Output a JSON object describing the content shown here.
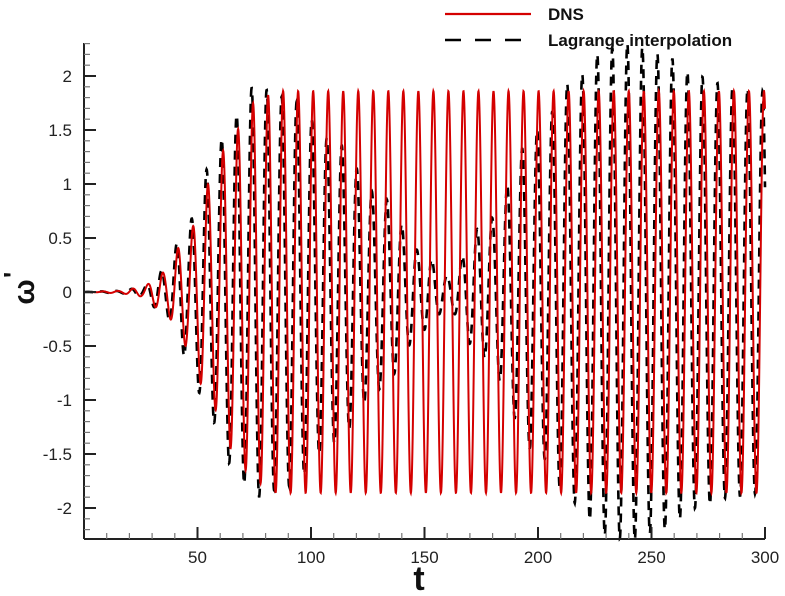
{
  "chart_data": {
    "type": "line",
    "title": "",
    "xlabel": "t",
    "ylabel": "ω'",
    "xlim": [
      0,
      300
    ],
    "ylim": [
      -2.29,
      2.3
    ],
    "xticks": [
      50,
      100,
      150,
      200,
      250,
      300
    ],
    "xtick_labels": [
      "50",
      "100",
      "150",
      "200",
      "250",
      "300"
    ],
    "xminor_step": 10,
    "yticks": [
      -2,
      -1.5,
      -1,
      -0.5,
      0,
      0.5,
      1,
      1.5,
      2
    ],
    "ytick_labels": [
      "-2",
      "-1.5",
      "-1",
      "-0.5",
      "0",
      "0.5",
      "1",
      "1.5",
      "2"
    ],
    "yminor_step": 0.1,
    "grid": false,
    "legend_position": "top-right, outside plot area",
    "period": 6.62,
    "series": [
      {
        "name": "DNS",
        "color": "#d40000",
        "style": "solid",
        "envelope": {
          "t": [
            0,
            15,
            25,
            35,
            45,
            55,
            65,
            75,
            85,
            300
          ],
          "amplitude": [
            0,
            0.01,
            0.04,
            0.18,
            0.5,
            1.0,
            1.45,
            1.75,
            1.86,
            1.86
          ]
        },
        "phase_offset": 0
      },
      {
        "name": "Lagrange interpolation",
        "color": "#000000",
        "style": "dashed",
        "envelope": {
          "t": [
            0,
            15,
            25,
            35,
            45,
            55,
            65,
            75,
            90,
            110,
            130,
            150,
            160,
            175,
            200,
            215,
            230,
            240,
            255,
            270,
            285,
            300
          ],
          "amplitude": [
            0,
            0.01,
            0.04,
            0.2,
            0.6,
            1.15,
            1.6,
            1.9,
            1.8,
            1.4,
            0.9,
            0.35,
            0.15,
            0.6,
            1.5,
            1.95,
            2.25,
            2.3,
            2.2,
            2.0,
            1.9,
            1.86
          ]
        },
        "phase_offset": 0.6
      }
    ],
    "legend": [
      {
        "label": "DNS",
        "color": "#d40000",
        "style": "solid"
      },
      {
        "label": "Lagrange interpolation",
        "color": "#000000",
        "style": "dashed"
      }
    ]
  },
  "legend": {
    "dns_label": "DNS",
    "lagrange_label": "Lagrange interpolation"
  },
  "axes": {
    "xlabel": "t",
    "ylabel_main": "ω",
    "ylabel_prime": "'"
  }
}
